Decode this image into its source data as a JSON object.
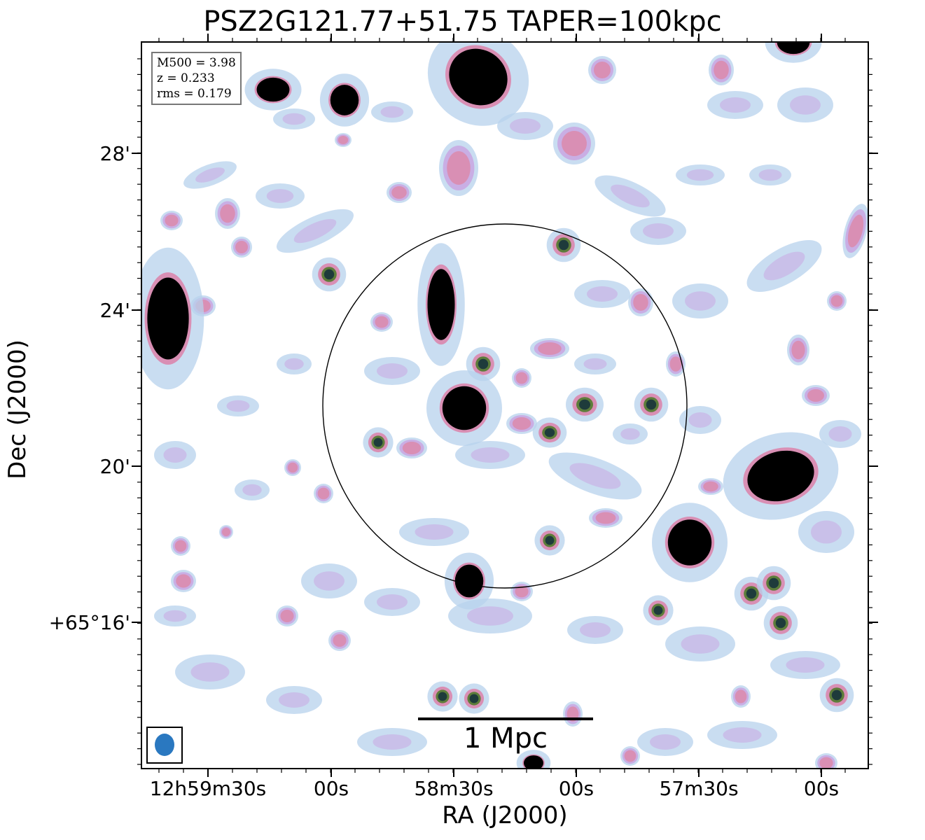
{
  "title": "PSZ2G121.77+51.75 TAPER=100kpc",
  "xlabel": "RA (J2000)",
  "ylabel": "Dec (J2000)",
  "yticks": [
    "28'",
    "24'",
    "20'",
    "+65°16'"
  ],
  "xticks": [
    "12h59m30s",
    "00s",
    "58m30s",
    "00s",
    "57m30s",
    "00s"
  ],
  "info": {
    "m500": "M500 = 3.98",
    "z": "z = 0.233",
    "rms": "rms = 0.179"
  },
  "scalebar": {
    "label": "1 Mpc"
  },
  "colors": {
    "faint": "#b7d2ec",
    "mid": "#c9a8e2",
    "pink": "#d98fb4",
    "olive": "#5d7d3a",
    "dark": "#1e3b3b",
    "core": "#000000",
    "beam": "#2a78c0"
  }
}
